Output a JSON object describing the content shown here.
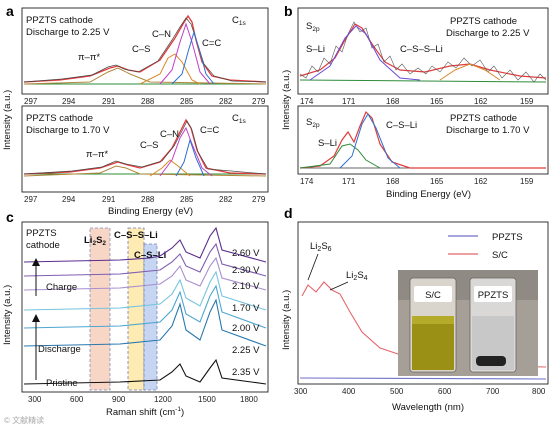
{
  "panels": {
    "a": {
      "label": "a",
      "top": {
        "sample": "PPZTS cathode",
        "condition": "Discharge to 2.25 V",
        "region": "C",
        "region_sub": "1s",
        "peaks": [
          "π–π*",
          "C–S",
          "C–N",
          "C=C"
        ]
      },
      "bottom": {
        "sample": "PPZTS cathode",
        "condition": "Discharge to 1.70 V",
        "region": "C",
        "region_sub": "1s",
        "peaks": [
          "π–π*",
          "C–S",
          "C–N",
          "C=C"
        ]
      },
      "xlabel": "Binding Energy (eV)",
      "ylabel": "Intensity (a.u.)",
      "xticks": [
        "297",
        "294",
        "291",
        "288",
        "285",
        "282",
        "279"
      ]
    },
    "b": {
      "label": "b",
      "top": {
        "region": "S",
        "region_sub": "2p",
        "sample": "PPZTS cathode",
        "condition": "Discharge to 2.25 V",
        "peaks": [
          "S–Li",
          "C–S–S–Li"
        ]
      },
      "bottom": {
        "region": "S",
        "region_sub": "2p",
        "sample": "PPZTS cathode",
        "condition": "Discharge to 1.70 V",
        "peaks": [
          "S–Li",
          "C–S–Li"
        ]
      },
      "xlabel": "Binding Energy (eV)",
      "ylabel": "Intensity (a.u.)",
      "xticks": [
        "174",
        "171",
        "168",
        "165",
        "162",
        "159"
      ]
    },
    "c": {
      "label": "c",
      "title_line1": "PPZTS",
      "title_line2": "cathode",
      "band_labels": {
        "li2s2": "Li",
        "li2s2_sub": "2",
        "li2s2_s": "S",
        "li2s2_sub2": "2",
        "cssli": "C–S–S–Li",
        "csli": "C–S–Li"
      },
      "voltages": [
        "2.60 V",
        "2.30 V",
        "2.10 V",
        "1.70 V",
        "2.00 V",
        "2.25 V",
        "2.35 V"
      ],
      "arrow_labels": [
        "Charge",
        "Discharge",
        "Pristine"
      ],
      "xlabel": "Raman shift (cm",
      "xlabel_sup": "-1",
      "xlabel_end": ")",
      "ylabel": "Intensity (a.u.)",
      "xticks": [
        "300",
        "600",
        "900",
        "1200",
        "1500",
        "1800"
      ],
      "colors": [
        "#5b2d8e",
        "#7f5db0",
        "#a98fd1",
        "#76c4de",
        "#4ea6cf",
        "#2a78b0",
        "#111111"
      ]
    },
    "d": {
      "label": "d",
      "legend": [
        {
          "name": "PPZTS",
          "color": "#6f72c9"
        },
        {
          "name": "S/C",
          "color": "#e5656a"
        }
      ],
      "annotations": {
        "li2s6": "Li",
        "li2s6_sub": "2",
        "li2s6_s": "S",
        "li2s6_sub2": "6",
        "li2s4": "Li",
        "li2s4_sub": "2",
        "li2s4_s": "S",
        "li2s4_sub2": "4"
      },
      "vial_labels": [
        "S/C",
        "PPZTS"
      ],
      "xlabel": "Wavelength (nm)",
      "ylabel": "Intensity (a.u.)",
      "xticks": [
        "300",
        "400",
        "500",
        "600",
        "700",
        "800"
      ]
    }
  },
  "watermark": "© 文献精读"
}
